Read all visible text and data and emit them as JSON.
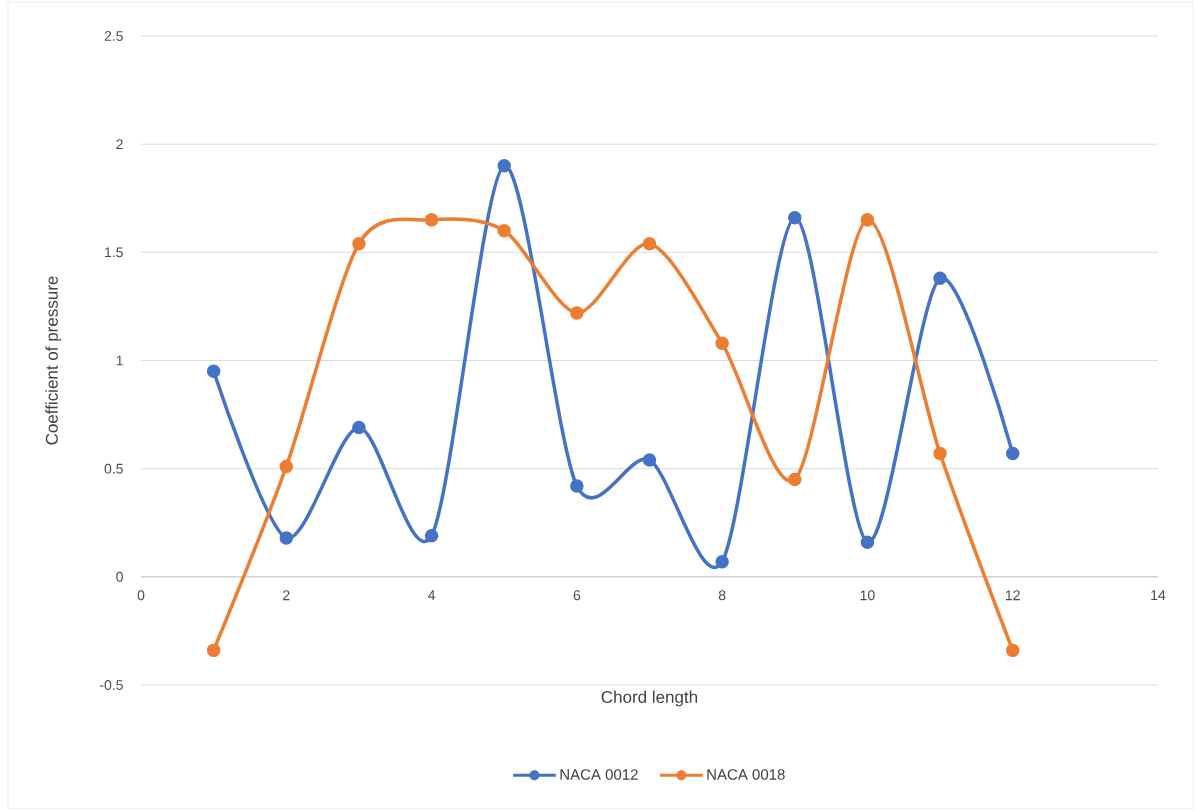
{
  "chart_data": {
    "type": "line",
    "xlabel": "Chord length",
    "ylabel": "Coefficient of pressure",
    "xlim": [
      0,
      14
    ],
    "xticks": [
      0,
      2,
      4,
      6,
      8,
      10,
      12,
      14
    ],
    "ylim": [
      -0.5,
      2.5
    ],
    "yticks": [
      -0.5,
      0,
      0.5,
      1,
      1.5,
      2,
      2.5
    ],
    "x": [
      1,
      2,
      3,
      4,
      5,
      6,
      7,
      8,
      9,
      10,
      11,
      12
    ],
    "grid": "y",
    "legend": "bottom",
    "marker": "circle",
    "line_style": "solid",
    "series": [
      {
        "name": "NACA 0012",
        "color": "#4472c4",
        "values": [
          0.95,
          0.18,
          0.69,
          0.19,
          1.9,
          0.42,
          0.54,
          0.07,
          1.66,
          0.16,
          1.38,
          0.57
        ]
      },
      {
        "name": "NACA 0018",
        "color": "#ed7d31",
        "values": [
          -0.34,
          0.51,
          1.54,
          1.65,
          1.6,
          1.22,
          1.54,
          1.08,
          0.45,
          1.65,
          0.57,
          -0.34
        ]
      }
    ]
  }
}
